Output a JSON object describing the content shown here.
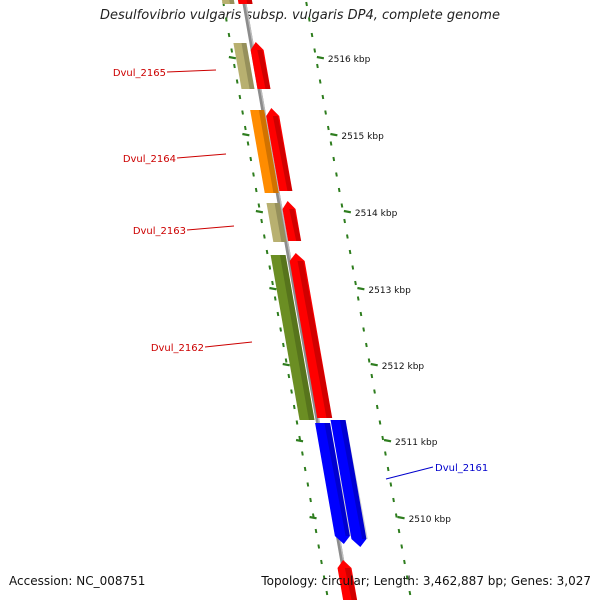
{
  "title": "Desulfovibrio vulgaris subsp. vulgaris DP4, complete genome",
  "accession": "Accession: NC_008751",
  "topology": "Topology: circular; Length: 3,462,887 bp; Genes: 3,027",
  "colors": {
    "backbone": "#8c8c8c",
    "tick": "#2e7d1e",
    "tick_label": "#111111",
    "red_gene": "#ff0000",
    "blue_gene": "#0000ff",
    "khaki_gene": "#b8b070",
    "orange_gene": "#ff8c00",
    "olive_gene": "#6b8e23",
    "red_label": "#cc0000",
    "blue_label": "#0000cc"
  },
  "ticks": [
    {
      "label": "2516 kbp"
    },
    {
      "label": "2515 kbp"
    },
    {
      "label": "2514 kbp"
    },
    {
      "label": "2513 kbp"
    },
    {
      "label": "2512 kbp"
    },
    {
      "label": "2511 kbp"
    },
    {
      "label": "2510 kbp"
    }
  ],
  "gene_labels": [
    {
      "name": "Dvul_2165",
      "color": "#cc0000"
    },
    {
      "name": "Dvul_2164",
      "color": "#cc0000"
    },
    {
      "name": "Dvul_2163",
      "color": "#cc0000"
    },
    {
      "name": "Dvul_2162",
      "color": "#cc0000"
    },
    {
      "name": "Dvul_2161",
      "color": "#0000cc"
    }
  ]
}
